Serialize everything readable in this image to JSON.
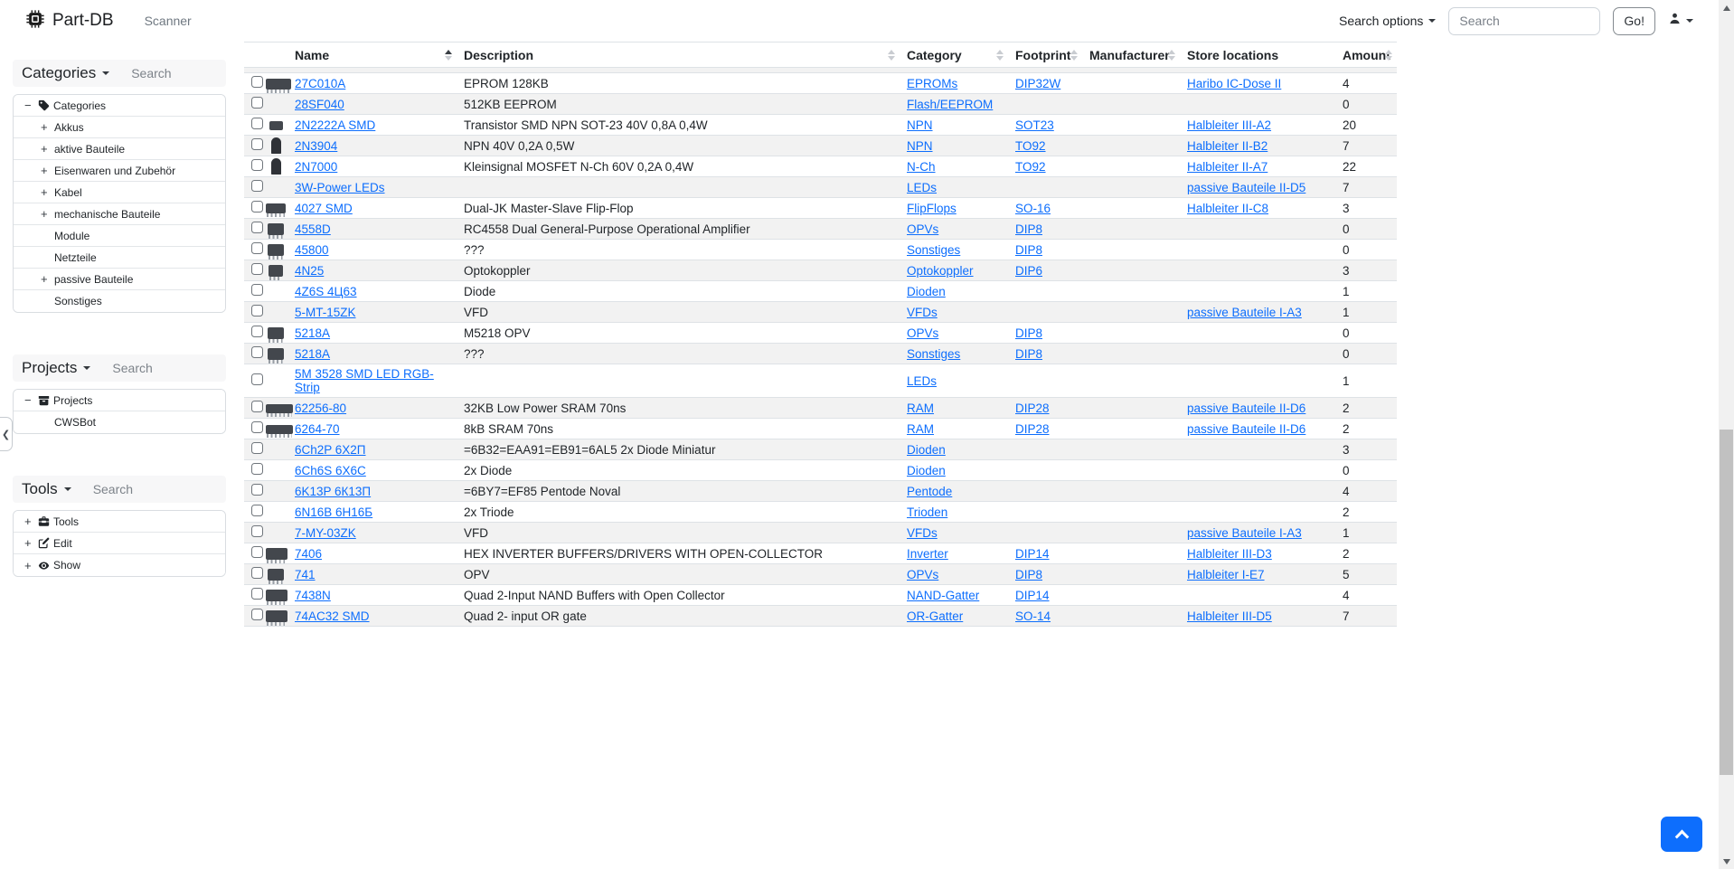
{
  "navbar": {
    "brand": "Part-DB",
    "scanner": "Scanner",
    "search_options": "Search options",
    "search_placeholder": "Search",
    "go": "Go!"
  },
  "sidebar": {
    "sections": [
      {
        "title": "Categories",
        "search_placeholder": "Search",
        "items": [
          {
            "expander": "−",
            "icon": "tag-icon",
            "label": "Categories",
            "depth": 0
          },
          {
            "expander": "+",
            "icon": "",
            "label": "Akkus",
            "depth": 1
          },
          {
            "expander": "+",
            "icon": "",
            "label": "aktive Bauteile",
            "depth": 1
          },
          {
            "expander": "+",
            "icon": "",
            "label": "Eisenwaren und Zubehör",
            "depth": 1
          },
          {
            "expander": "+",
            "icon": "",
            "label": "Kabel",
            "depth": 1
          },
          {
            "expander": "+",
            "icon": "",
            "label": "mechanische Bauteile",
            "depth": 1
          },
          {
            "expander": "",
            "icon": "",
            "label": "Module",
            "depth": 1
          },
          {
            "expander": "",
            "icon": "",
            "label": "Netzteile",
            "depth": 1
          },
          {
            "expander": "+",
            "icon": "",
            "label": "passive Bauteile",
            "depth": 1
          },
          {
            "expander": "",
            "icon": "",
            "label": "Sonstiges",
            "depth": 1
          }
        ]
      },
      {
        "title": "Projects",
        "search_placeholder": "Search",
        "items": [
          {
            "expander": "−",
            "icon": "archive-icon",
            "label": "Projects",
            "depth": 0
          },
          {
            "expander": "",
            "icon": "",
            "label": "CWSBot",
            "depth": 1
          }
        ]
      },
      {
        "title": "Tools",
        "search_placeholder": "Search",
        "items": [
          {
            "expander": "+",
            "icon": "toolbox-icon",
            "label": "Tools",
            "depth": 0
          },
          {
            "expander": "+",
            "icon": "pencil-square-icon",
            "label": "Edit",
            "depth": 0
          },
          {
            "expander": "+",
            "icon": "eye-icon",
            "label": "Show",
            "depth": 0
          }
        ]
      }
    ]
  },
  "table": {
    "columns": [
      {
        "label": "",
        "key": "select",
        "sortable": false
      },
      {
        "label": "",
        "key": "image",
        "sortable": false
      },
      {
        "label": "Name",
        "key": "name",
        "sortable": true,
        "sort": "asc"
      },
      {
        "label": "Description",
        "key": "description",
        "sortable": true,
        "sort": "none"
      },
      {
        "label": "Category",
        "key": "category",
        "sortable": true,
        "sort": "none"
      },
      {
        "label": "Footprint",
        "key": "footprint",
        "sortable": true,
        "sort": "none"
      },
      {
        "label": "Manufacturer",
        "key": "manufacturer",
        "sortable": true,
        "sort": "none"
      },
      {
        "label": "Store locations",
        "key": "locations",
        "sortable": false
      },
      {
        "label": "Amount",
        "key": "amount",
        "sortable": true,
        "sort": "none"
      }
    ],
    "rows": [
      {
        "name": "27C010A",
        "description": "EPROM 128KB",
        "category": "EPROMs",
        "footprint": "DIP32W",
        "manufacturer": "",
        "location": "Haribo IC-Dose II",
        "amount": "4",
        "thumb": "ic-wide"
      },
      {
        "name": "28SF040",
        "description": "512KB EEPROM",
        "category": "Flash/EEPROM",
        "footprint": "",
        "manufacturer": "",
        "location": "",
        "amount": "0",
        "thumb": ""
      },
      {
        "name": "2N2222A SMD",
        "description": "Transistor SMD NPN SOT-23 40V 0,8A 0,4W",
        "category": "NPN",
        "footprint": "SOT23",
        "manufacturer": "",
        "location": "Halbleiter III-A2",
        "amount": "20",
        "thumb": "sot23"
      },
      {
        "name": "2N3904",
        "description": "NPN 40V 0,2A 0,5W",
        "category": "NPN",
        "footprint": "TO92",
        "manufacturer": "",
        "location": "Halbleiter II-B2",
        "amount": "7",
        "thumb": "to92"
      },
      {
        "name": "2N7000",
        "description": "Kleinsignal MOSFET N-Ch 60V 0,2A 0,4W",
        "category": "N-Ch",
        "footprint": "TO92",
        "manufacturer": "",
        "location": "Halbleiter II-A7",
        "amount": "22",
        "thumb": "to92"
      },
      {
        "name": "3W-Power LEDs",
        "description": "",
        "category": "LEDs",
        "footprint": "",
        "manufacturer": "",
        "location": "passive Bauteile II-D5",
        "amount": "7",
        "thumb": ""
      },
      {
        "name": "4027 SMD",
        "description": "Dual-JK Master-Slave Flip-Flop",
        "category": "FlipFlops",
        "footprint": "SO-16",
        "manufacturer": "",
        "location": "Halbleiter II-C8",
        "amount": "3",
        "thumb": "so16"
      },
      {
        "name": "4558D",
        "description": "RC4558 Dual General-Purpose Operational Amplifier",
        "category": "OPVs",
        "footprint": "DIP8",
        "manufacturer": "",
        "location": "",
        "amount": "0",
        "thumb": "ic-dip8"
      },
      {
        "name": "45800",
        "description": "???",
        "category": "Sonstiges",
        "footprint": "DIP8",
        "manufacturer": "",
        "location": "",
        "amount": "0",
        "thumb": "ic-dip8"
      },
      {
        "name": "4N25",
        "description": "Optokoppler",
        "category": "Optokoppler",
        "footprint": "DIP6",
        "manufacturer": "",
        "location": "",
        "amount": "3",
        "thumb": "ic-dip6"
      },
      {
        "name": "4Z6S 4Ц63",
        "description": "Diode",
        "category": "Dioden",
        "footprint": "",
        "manufacturer": "",
        "location": "",
        "amount": "1",
        "thumb": ""
      },
      {
        "name": "5-MT-15ZK",
        "description": "VFD",
        "category": "VFDs",
        "footprint": "",
        "manufacturer": "",
        "location": "passive Bauteile I-A3",
        "amount": "1",
        "thumb": ""
      },
      {
        "name": "5218A",
        "description": "M5218 OPV",
        "category": "OPVs",
        "footprint": "DIP8",
        "manufacturer": "",
        "location": "",
        "amount": "0",
        "thumb": "ic-dip8"
      },
      {
        "name": "5218A",
        "description": "???",
        "category": "Sonstiges",
        "footprint": "DIP8",
        "manufacturer": "",
        "location": "",
        "amount": "0",
        "thumb": "ic-dip8"
      },
      {
        "name": "5M 3528 SMD LED RGB-Strip",
        "description": "",
        "category": "LEDs",
        "footprint": "",
        "manufacturer": "",
        "location": "",
        "amount": "1",
        "thumb": ""
      },
      {
        "name": "62256-80",
        "description": "32KB Low Power SRAM 70ns",
        "category": "RAM",
        "footprint": "DIP28",
        "manufacturer": "",
        "location": "passive Bauteile II-D6",
        "amount": "2",
        "thumb": "ic-long"
      },
      {
        "name": "6264-70",
        "description": "8kB SRAM 70ns",
        "category": "RAM",
        "footprint": "DIP28",
        "manufacturer": "",
        "location": "passive Bauteile II-D6",
        "amount": "2",
        "thumb": "ic-long"
      },
      {
        "name": "6Ch2P 6Х2П",
        "description": "=6B32=EAA91=EB91=6AL5 2x Diode Miniatur",
        "category": "Dioden",
        "footprint": "",
        "manufacturer": "",
        "location": "",
        "amount": "3",
        "thumb": "tube"
      },
      {
        "name": "6Ch6S 6X6C",
        "description": "2x Diode",
        "category": "Dioden",
        "footprint": "",
        "manufacturer": "",
        "location": "",
        "amount": "0",
        "thumb": ""
      },
      {
        "name": "6K13P 6К13П",
        "description": "=6BY7=EF85 Pentode Noval",
        "category": "Pentode",
        "footprint": "",
        "manufacturer": "",
        "location": "",
        "amount": "4",
        "thumb": "tube-tall"
      },
      {
        "name": "6N16B 6Н16Б",
        "description": "2x Triode",
        "category": "Trioden",
        "footprint": "",
        "manufacturer": "",
        "location": "",
        "amount": "2",
        "thumb": "tube-small"
      },
      {
        "name": "7-MY-03ZK",
        "description": "VFD",
        "category": "VFDs",
        "footprint": "",
        "manufacturer": "",
        "location": "passive Bauteile I-A3",
        "amount": "1",
        "thumb": ""
      },
      {
        "name": "7406",
        "description": "HEX INVERTER BUFFERS/DRIVERS WITH OPEN-COLLECTOR",
        "category": "Inverter",
        "footprint": "DIP14",
        "manufacturer": "",
        "location": "Halbleiter III-D3",
        "amount": "2",
        "thumb": "ic-dip14"
      },
      {
        "name": "741",
        "description": "OPV",
        "category": "OPVs",
        "footprint": "DIP8",
        "manufacturer": "",
        "location": "Halbleiter I-E7",
        "amount": "5",
        "thumb": "ic-dip8"
      },
      {
        "name": "7438N",
        "description": "Quad 2-Input NAND Buffers with Open Collector",
        "category": "NAND-Gatter",
        "footprint": "DIP14",
        "manufacturer": "",
        "location": "",
        "amount": "4",
        "thumb": "ic-dip14"
      },
      {
        "name": "74AC32 SMD",
        "description": "Quad 2- input OR gate",
        "category": "OR-Gatter",
        "footprint": "SO-14",
        "manufacturer": "",
        "location": "Halbleiter III-D5",
        "amount": "7",
        "thumb": "ic-dip14"
      }
    ]
  },
  "colors": {
    "link": "#0d6efd",
    "accent": "#0d6efd",
    "stripe": "#f2f2f2"
  }
}
